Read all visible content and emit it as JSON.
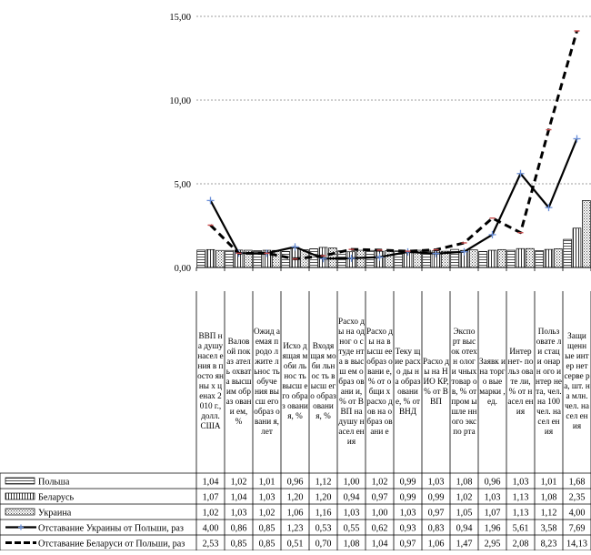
{
  "chart_data": {
    "type": "bar",
    "title": "",
    "xlabel": "",
    "ylabel": "",
    "ylim": [
      0,
      15
    ],
    "yticks": [
      "0,00",
      "5,00",
      "10,00",
      "15,00"
    ],
    "grid": true,
    "legend_position": "left, in data table",
    "categories": [
      "ВВП на душу населения в постоянных ценах 2010 г., долл. США",
      "Валовой показатель охвата высшим образованием, %",
      "Ожидаемая продолжительность обучения высшего образования, лет",
      "Исходящая мобильность высшего образования, %",
      "Входящая мобильность высшего образования, %",
      "Расходы на одного студента в высшем образовании, % от ВВП на душу населения",
      "Расходы на высшее образование, % от общих расходов на образование",
      "Текущие расходы на образование, % от ВНД",
      "Расходы на НИОКР, % от ВВП",
      "Экспорт высокотехнологичных товаров, % от промышленного экспорта",
      "Заявки на торговые марки, ед.",
      "Интернет-пользователи, % от населения",
      "Пользователи стационарного интернета, чел. на 100 чел. населения",
      "Защищенные интернет серверы, шт. на млн. чел. населения"
    ],
    "category_display": [
      "ВВП на душу насел ения в посто янны х ценах 2010 г., долл. США",
      "Валов ой показ атель охват а высш им образ овани ем, %",
      "Ожид аемая продо лжите льнос ть обуче ния высш его образ овани я, лет",
      "Исхо дящая моби льнос ть высш его образ овани я, %",
      "Входя щая моби льнос ть высш его образ овани я, %",
      "Расхо ды на одног о студе нта в высш ем образ овани и, % от ВВП на душу насел ения",
      "Расхо ды на высш ее образ овани е, % от общи х расхо дов на образ овани е",
      "Теку щие расхо ды на образ овани е, % от ВНД",
      "Расхо ды на НИО КР, % от ВВП",
      "Экспо рт высок отехн ологи чных товар ов, % от пром ышле нного экспо рта",
      "Заявк и на торго вые марки , ед.",
      "Интер нет- польз овате ли, % от насел ения",
      "Польз овате ли стаци онарн ого интер нета, чел. на 100 чел. насел ения",
      "Защи щенн ые интер нет серве ра, шт. на млн. чел. насел ения"
    ],
    "series": [
      {
        "name": "Польша",
        "type": "bar",
        "values": [
          "1,04",
          "1,02",
          "1,01",
          "0,96",
          "1,12",
          "1,00",
          "1,02",
          "0,99",
          "1,03",
          "1,08",
          "0,96",
          "1,03",
          "1,01",
          "1,68"
        ]
      },
      {
        "name": "Беларусь",
        "type": "bar",
        "values": [
          "1,07",
          "1,04",
          "1,03",
          "1,20",
          "1,20",
          "0,94",
          "0,97",
          "0,99",
          "0,99",
          "1,02",
          "1,03",
          "1,13",
          "1,08",
          "2,35"
        ]
      },
      {
        "name": "Украина",
        "type": "bar",
        "values": [
          "1,02",
          "1,03",
          "1,02",
          "1,06",
          "1,16",
          "1,03",
          "1,00",
          "1,03",
          "0,97",
          "1,05",
          "1,07",
          "1,13",
          "1,12",
          "4,00"
        ]
      },
      {
        "name": "Отставание Украины от Польши, раз",
        "type": "line",
        "values": [
          "4,00",
          "0,86",
          "0,85",
          "1,23",
          "0,53",
          "0,55",
          "0,62",
          "0,93",
          "0,83",
          "0,94",
          "1,96",
          "5,61",
          "3,58",
          "7,69"
        ]
      },
      {
        "name": "Отставание Беларуси от Польши, раз",
        "type": "line",
        "values": [
          "2,53",
          "0,85",
          "0,85",
          "0,51",
          "0,70",
          "1,08",
          "1,04",
          "0,97",
          "1,06",
          "1,47",
          "2,95",
          "2,08",
          "8,23",
          "14,13"
        ]
      }
    ],
    "colors": {
      "line_ukraine": "#000000",
      "line_ukraine_marker": "#6a8fd8",
      "line_belarus": "#000000",
      "line_belarus_marker": "#c94a4a",
      "grid": "#7f7f7f"
    }
  }
}
